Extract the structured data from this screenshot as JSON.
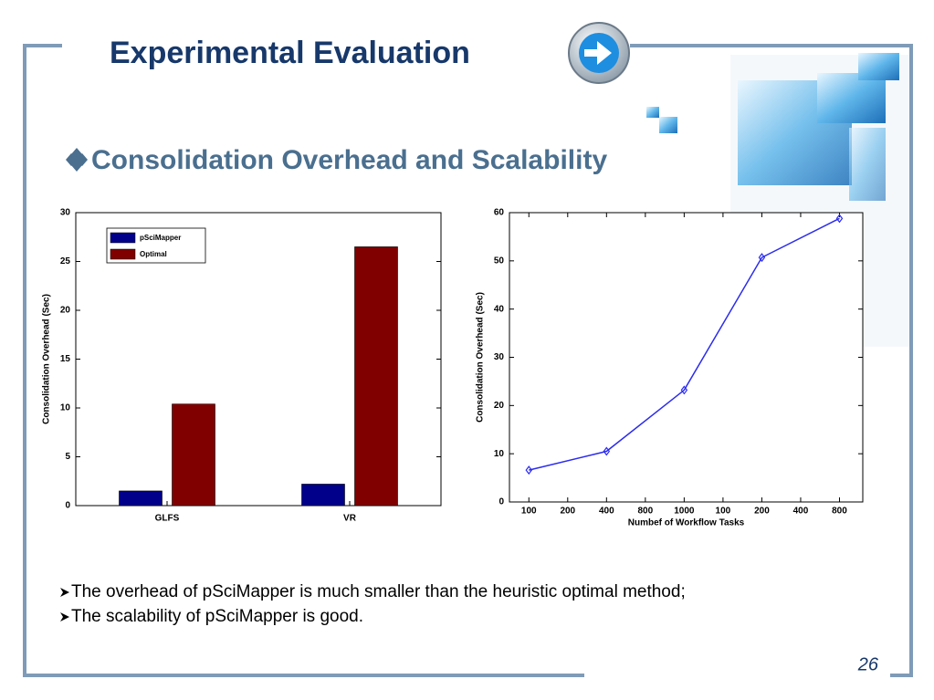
{
  "slide": {
    "title": "Experimental Evaluation",
    "heading": "Consolidation Overhead and Scalability",
    "bullets": [
      "The overhead of pSciMapper is much smaller than the heuristic optimal method;",
      "The scalability of pSciMapper is good."
    ],
    "page_number": "26"
  },
  "chart_data": [
    {
      "type": "bar",
      "ylabel": "Consolidation Overhead (Sec)",
      "categories": [
        "GLFS",
        "VR"
      ],
      "series": [
        {
          "name": "pSciMapper",
          "color": "#00008b",
          "values": [
            1.5,
            2.2
          ]
        },
        {
          "name": "Optimal",
          "color": "#800000",
          "values": [
            10.4,
            26.5
          ]
        }
      ],
      "ylim": [
        0,
        30
      ],
      "yticks": [
        0,
        5,
        10,
        15,
        20,
        25,
        30
      ],
      "legend": "upper-left"
    },
    {
      "type": "line",
      "xlabel": "Numbef of Workflow Tasks",
      "ylabel": "Consolidation Overhead (Sec)",
      "x": [
        1,
        3,
        5,
        7,
        9
      ],
      "values": [
        6.6,
        10.5,
        23.2,
        50.7,
        58.8
      ],
      "color": "#2b2bee",
      "xlim": [
        0.5,
        9.6
      ],
      "xticks": [
        {
          "value": 1,
          "label": "100"
        },
        {
          "value": 2,
          "label": "200"
        },
        {
          "value": 3,
          "label": "400"
        },
        {
          "value": 4,
          "label": "800"
        },
        {
          "value": 5,
          "label": "1000"
        },
        {
          "value": 6,
          "label": "100"
        },
        {
          "value": 7,
          "label": "200"
        },
        {
          "value": 8,
          "label": "400"
        },
        {
          "value": 9,
          "label": "800"
        }
      ],
      "ylim": [
        0,
        60
      ],
      "yticks": [
        0,
        10,
        20,
        30,
        40,
        50,
        60
      ]
    }
  ]
}
